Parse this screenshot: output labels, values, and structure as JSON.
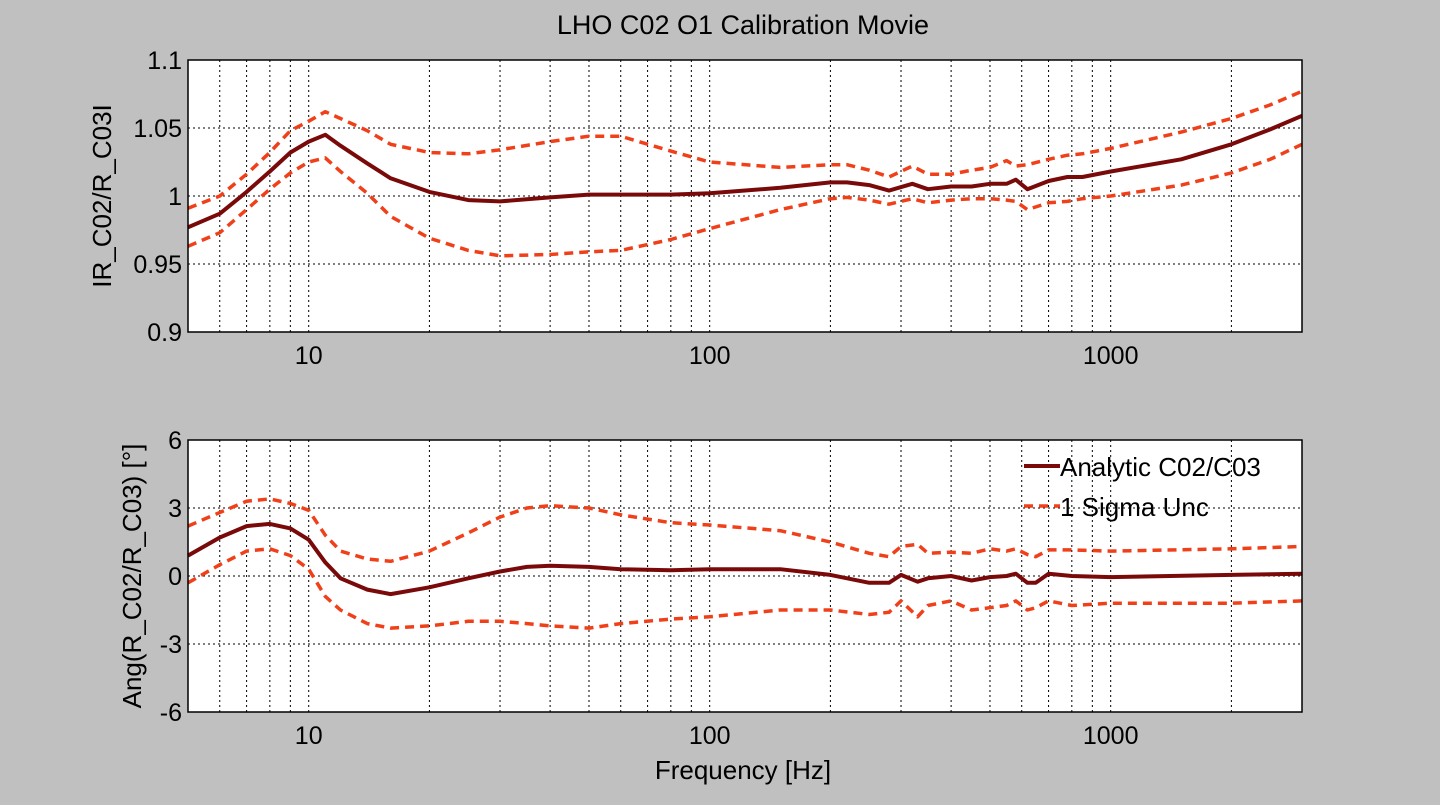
{
  "title": "LHO C02 O1 Calibration Movie",
  "colors": {
    "background": "#c0c0c0",
    "axes_bg": "#ffffff",
    "analytic": "#7a0a0a",
    "sigma": "#f0401a",
    "grid": "#000000"
  },
  "chart_data": [
    {
      "type": "line",
      "xscale": "log",
      "xlim": [
        5,
        3000
      ],
      "ylim": [
        0.9,
        1.1
      ],
      "xlabel": "",
      "ylabel": "IR_C02/R_C03I",
      "grid": true,
      "xticks": [
        10,
        100,
        1000
      ],
      "xtick_labels": [
        "10",
        "100",
        "1000"
      ],
      "yticks": [
        0.9,
        0.95,
        1,
        1.05,
        1.1
      ],
      "ytick_labels": [
        "0.9",
        "0.95",
        "1",
        "1.05",
        "1.1"
      ],
      "series": [
        {
          "key": "analytic",
          "x": [
            5,
            6,
            7,
            8,
            9,
            10,
            11,
            12,
            14,
            16,
            20,
            25,
            30,
            40,
            50,
            60,
            80,
            100,
            150,
            200,
            220,
            250,
            280,
            320,
            350,
            400,
            450,
            500,
            550,
            580,
            620,
            700,
            780,
            850,
            1000,
            1500,
            2000,
            2500,
            3000
          ],
          "y": [
            0.977,
            0.987,
            1.003,
            1.018,
            1.032,
            1.04,
            1.045,
            1.037,
            1.024,
            1.013,
            1.003,
            0.997,
            0.996,
            0.999,
            1.001,
            1.001,
            1.001,
            1.002,
            1.006,
            1.01,
            1.01,
            1.008,
            1.004,
            1.009,
            1.005,
            1.007,
            1.007,
            1.009,
            1.009,
            1.012,
            1.005,
            1.011,
            1.014,
            1.014,
            1.018,
            1.027,
            1.038,
            1.049,
            1.059
          ]
        },
        {
          "key": "sigma_upper",
          "x": [
            5,
            6,
            7,
            8,
            9,
            10,
            11,
            12,
            14,
            16,
            20,
            25,
            30,
            40,
            50,
            60,
            80,
            100,
            150,
            200,
            220,
            250,
            280,
            320,
            350,
            400,
            450,
            500,
            550,
            580,
            620,
            700,
            780,
            850,
            1000,
            1500,
            2000,
            2500,
            3000
          ],
          "y": [
            0.991,
            1.0,
            1.016,
            1.032,
            1.048,
            1.055,
            1.062,
            1.057,
            1.048,
            1.038,
            1.032,
            1.031,
            1.034,
            1.04,
            1.044,
            1.044,
            1.033,
            1.025,
            1.021,
            1.023,
            1.023,
            1.019,
            1.014,
            1.022,
            1.016,
            1.016,
            1.019,
            1.021,
            1.026,
            1.022,
            1.023,
            1.027,
            1.03,
            1.031,
            1.035,
            1.047,
            1.057,
            1.067,
            1.077
          ]
        },
        {
          "key": "sigma_lower",
          "x": [
            5,
            6,
            7,
            8,
            9,
            10,
            11,
            12,
            14,
            16,
            20,
            25,
            30,
            40,
            50,
            60,
            80,
            100,
            150,
            200,
            220,
            250,
            280,
            320,
            350,
            400,
            450,
            500,
            550,
            580,
            620,
            700,
            780,
            850,
            1000,
            1500,
            2000,
            2500,
            3000
          ],
          "y": [
            0.963,
            0.973,
            0.99,
            1.005,
            1.017,
            1.025,
            1.028,
            1.018,
            1.002,
            0.985,
            0.969,
            0.96,
            0.956,
            0.957,
            0.959,
            0.96,
            0.968,
            0.976,
            0.99,
            0.998,
            0.999,
            0.997,
            0.994,
            0.998,
            0.995,
            0.997,
            0.998,
            0.998,
            0.997,
            0.996,
            0.99,
            0.995,
            0.996,
            0.998,
            1.0,
            1.008,
            1.017,
            1.027,
            1.038
          ]
        }
      ]
    },
    {
      "type": "line",
      "xscale": "log",
      "xlim": [
        5,
        3000
      ],
      "ylim": [
        -6,
        6
      ],
      "xlabel": "Frequency [Hz]",
      "ylabel": "Ang(R_C02/R_C03) [°]",
      "grid": true,
      "legend_position": "top-right",
      "xticks": [
        10,
        100,
        1000
      ],
      "xtick_labels": [
        "10",
        "100",
        "1000"
      ],
      "yticks": [
        -6,
        -3,
        0,
        3,
        6
      ],
      "ytick_labels": [
        "-6",
        "-3",
        "0",
        "3",
        "6"
      ],
      "series": [
        {
          "key": "analytic",
          "name": "Analytic C02/C03",
          "x": [
            5,
            6,
            7,
            8,
            9,
            10,
            11,
            12,
            14,
            16,
            20,
            25,
            30,
            35,
            40,
            50,
            60,
            80,
            100,
            150,
            200,
            250,
            280,
            300,
            330,
            350,
            400,
            450,
            500,
            550,
            580,
            620,
            650,
            700,
            800,
            1000,
            2000,
            3000
          ],
          "y": [
            0.9,
            1.7,
            2.2,
            2.3,
            2.1,
            1.6,
            0.6,
            -0.1,
            -0.6,
            -0.8,
            -0.5,
            -0.1,
            0.2,
            0.4,
            0.45,
            0.4,
            0.3,
            0.25,
            0.3,
            0.3,
            0.05,
            -0.3,
            -0.3,
            0.05,
            -0.25,
            -0.1,
            0.0,
            -0.2,
            -0.05,
            0.0,
            0.1,
            -0.3,
            -0.3,
            0.1,
            0.0,
            -0.05,
            0.05,
            0.1
          ]
        },
        {
          "key": "sigma_upper",
          "name": "1 Sigma Unc",
          "x": [
            5,
            6,
            7,
            8,
            9,
            10,
            11,
            12,
            14,
            16,
            20,
            25,
            30,
            35,
            40,
            50,
            60,
            80,
            100,
            150,
            200,
            250,
            280,
            300,
            330,
            350,
            400,
            450,
            500,
            550,
            580,
            620,
            650,
            700,
            800,
            1000,
            2000,
            3000
          ],
          "y": [
            2.2,
            2.8,
            3.3,
            3.4,
            3.2,
            2.9,
            1.8,
            1.1,
            0.75,
            0.65,
            1.1,
            1.9,
            2.6,
            3.0,
            3.1,
            3.0,
            2.7,
            2.35,
            2.25,
            2.0,
            1.5,
            1.0,
            0.85,
            1.3,
            1.4,
            1.0,
            1.05,
            1.0,
            1.2,
            1.1,
            1.2,
            0.95,
            0.85,
            1.15,
            1.15,
            1.1,
            1.2,
            1.3
          ]
        },
        {
          "key": "sigma_lower",
          "x": [
            5,
            6,
            7,
            8,
            9,
            10,
            11,
            12,
            14,
            16,
            20,
            25,
            30,
            35,
            40,
            50,
            60,
            80,
            100,
            150,
            200,
            250,
            280,
            300,
            330,
            350,
            400,
            450,
            500,
            550,
            580,
            620,
            650,
            700,
            800,
            1000,
            2000,
            3000
          ],
          "y": [
            -0.3,
            0.5,
            1.1,
            1.2,
            0.9,
            0.3,
            -0.9,
            -1.5,
            -2.1,
            -2.3,
            -2.2,
            -2.0,
            -2.0,
            -2.1,
            -2.2,
            -2.3,
            -2.1,
            -1.9,
            -1.8,
            -1.5,
            -1.5,
            -1.7,
            -1.6,
            -1.1,
            -1.8,
            -1.3,
            -1.1,
            -1.5,
            -1.4,
            -1.3,
            -1.1,
            -1.5,
            -1.4,
            -1.1,
            -1.3,
            -1.2,
            -1.2,
            -1.1
          ]
        }
      ]
    }
  ]
}
